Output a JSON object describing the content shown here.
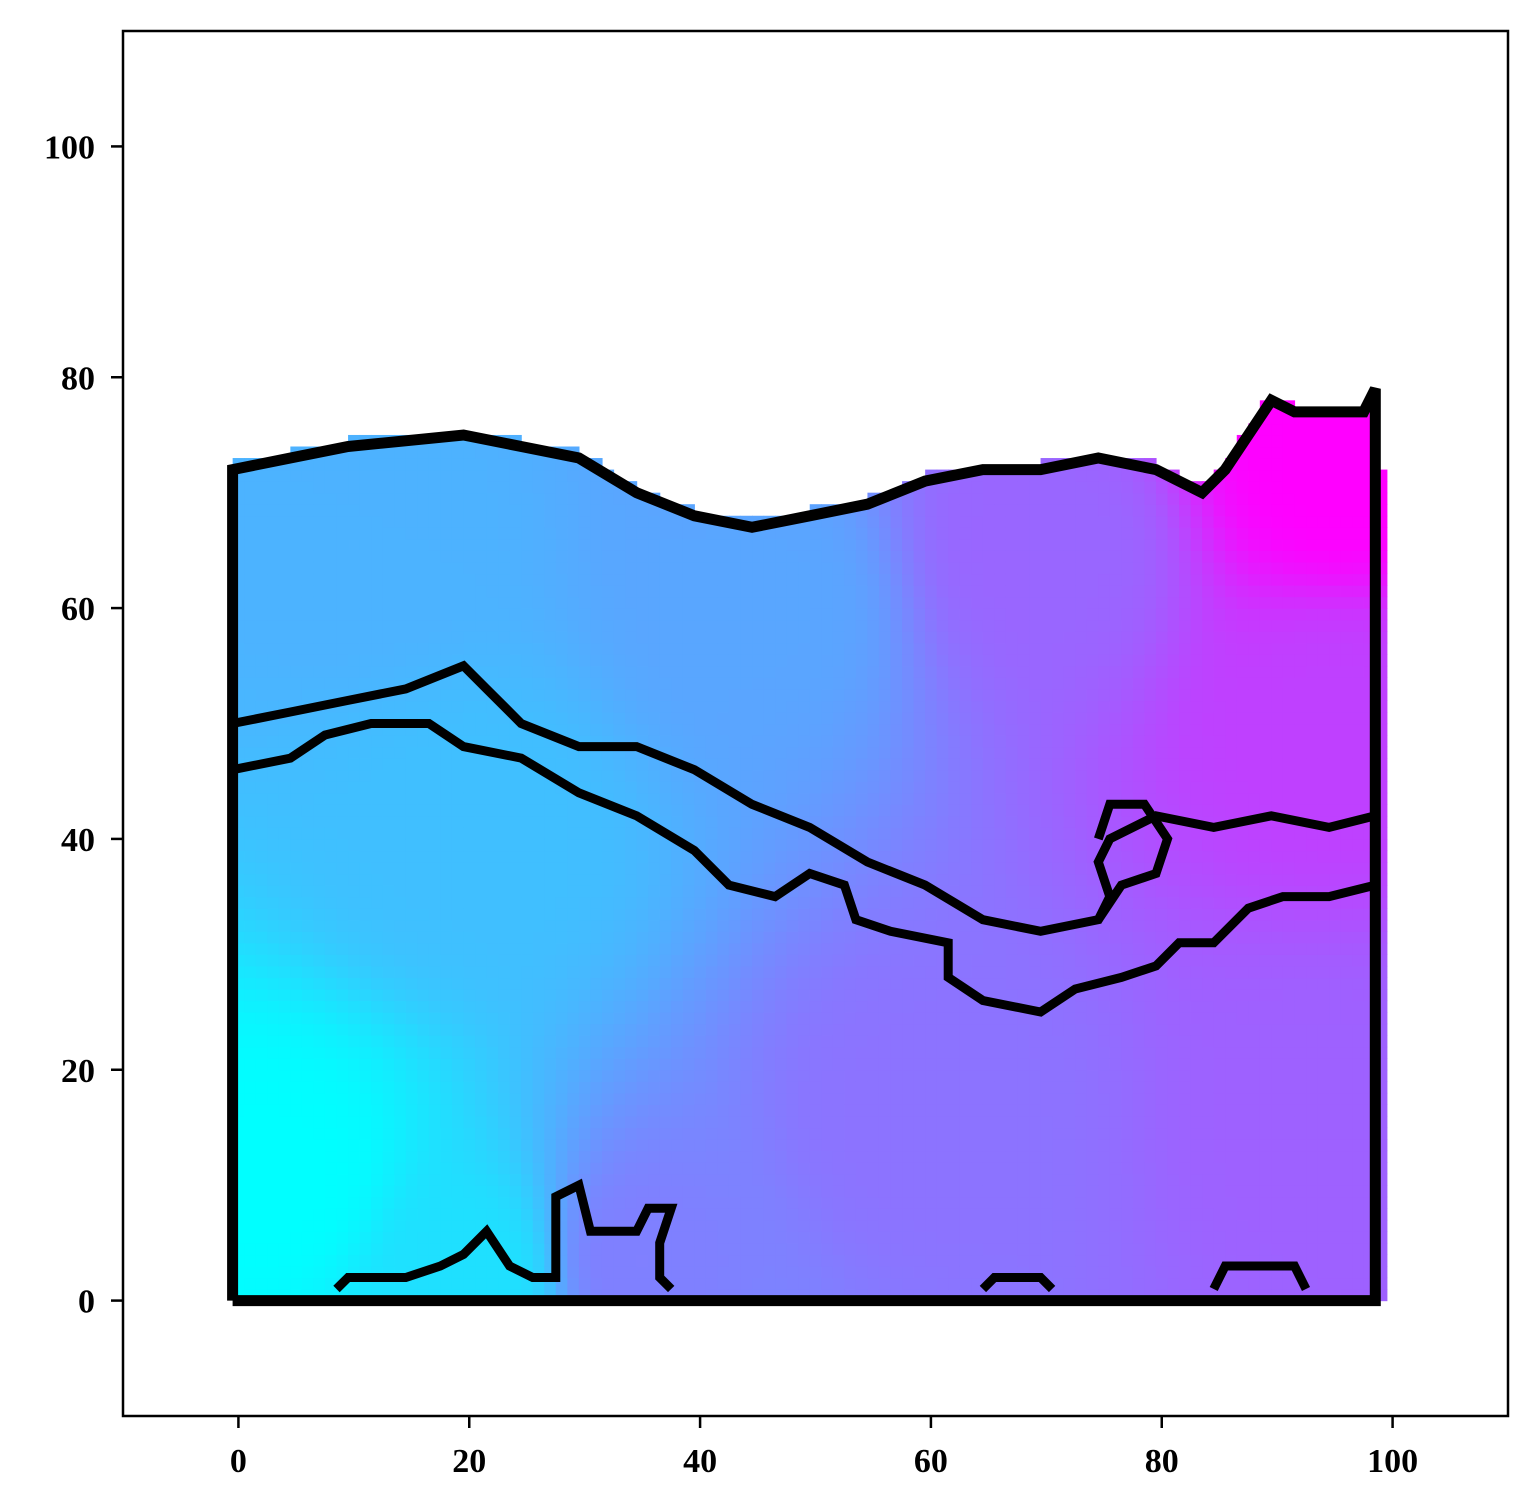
{
  "chart_data": {
    "type": "heatmap",
    "title": "",
    "xlabel": "",
    "ylabel": "",
    "xlim": [
      -10,
      110
    ],
    "ylim": [
      -10,
      110
    ],
    "xticks": [
      0,
      20,
      40,
      60,
      80,
      100
    ],
    "yticks": [
      0,
      20,
      40,
      60,
      80,
      100
    ],
    "grid": false,
    "colormap": "cool",
    "colormap_colors": [
      "#00ffff",
      "#ff00ff"
    ],
    "outline_color": "#000000",
    "field_anchors": [
      {
        "x": 3,
        "y": 10,
        "v": 0.0
      },
      {
        "x": 20,
        "y": 2,
        "v": 0.12
      },
      {
        "x": 35,
        "y": 3,
        "v": 0.5
      },
      {
        "x": 20,
        "y": 40,
        "v": 0.25
      },
      {
        "x": 10,
        "y": 65,
        "v": 0.3
      },
      {
        "x": 45,
        "y": 60,
        "v": 0.35
      },
      {
        "x": 60,
        "y": 15,
        "v": 0.55
      },
      {
        "x": 95,
        "y": 15,
        "v": 0.62
      },
      {
        "x": 70,
        "y": 65,
        "v": 0.6
      },
      {
        "x": 95,
        "y": 50,
        "v": 0.75
      },
      {
        "x": 95,
        "y": 72,
        "v": 1.0
      }
    ],
    "outline_paths": [
      [
        [
          0,
          0
        ],
        [
          0,
          72
        ],
        [
          5,
          73
        ],
        [
          10,
          74
        ],
        [
          20,
          75
        ],
        [
          25,
          74
        ],
        [
          30,
          73
        ],
        [
          35,
          70
        ],
        [
          40,
          68
        ],
        [
          45,
          67
        ],
        [
          50,
          68
        ],
        [
          55,
          69
        ],
        [
          60,
          71
        ],
        [
          65,
          72
        ],
        [
          70,
          72
        ],
        [
          75,
          73
        ],
        [
          80,
          72
        ],
        [
          84,
          70
        ],
        [
          86,
          72
        ],
        [
          88,
          75
        ],
        [
          90,
          78
        ],
        [
          92,
          77
        ],
        [
          98,
          77
        ],
        [
          99,
          79
        ],
        [
          99,
          0
        ],
        [
          0,
          0
        ]
      ],
      [
        [
          0,
          50
        ],
        [
          5,
          51
        ],
        [
          10,
          52
        ],
        [
          15,
          53
        ],
        [
          20,
          55
        ],
        [
          22,
          53
        ],
        [
          25,
          50
        ],
        [
          30,
          48
        ],
        [
          35,
          48
        ],
        [
          40,
          46
        ],
        [
          45,
          43
        ],
        [
          50,
          41
        ],
        [
          55,
          38
        ],
        [
          60,
          36
        ],
        [
          65,
          33
        ],
        [
          70,
          32
        ],
        [
          75,
          33
        ],
        [
          76,
          35
        ],
        [
          75,
          38
        ],
        [
          76,
          40
        ],
        [
          80,
          42
        ],
        [
          85,
          41
        ],
        [
          90,
          42
        ],
        [
          95,
          41
        ],
        [
          99,
          42
        ]
      ],
      [
        [
          75,
          33
        ],
        [
          77,
          36
        ],
        [
          80,
          37
        ],
        [
          81,
          40
        ],
        [
          79,
          43
        ],
        [
          76,
          43
        ],
        [
          75,
          40
        ]
      ],
      [
        [
          0,
          46
        ],
        [
          5,
          47
        ],
        [
          8,
          49
        ],
        [
          12,
          50
        ],
        [
          17,
          50
        ],
        [
          20,
          48
        ],
        [
          25,
          47
        ],
        [
          30,
          44
        ],
        [
          35,
          42
        ],
        [
          40,
          39
        ],
        [
          43,
          36
        ],
        [
          47,
          35
        ],
        [
          50,
          37
        ],
        [
          53,
          36
        ],
        [
          54,
          33
        ],
        [
          57,
          32
        ],
        [
          62,
          31
        ],
        [
          62,
          28
        ],
        [
          65,
          26
        ],
        [
          70,
          25
        ],
        [
          73,
          27
        ],
        [
          77,
          28
        ],
        [
          80,
          29
        ],
        [
          82,
          31
        ],
        [
          85,
          31
        ],
        [
          88,
          34
        ],
        [
          91,
          35
        ],
        [
          93,
          35
        ],
        [
          95,
          35
        ],
        [
          99,
          36
        ]
      ],
      [
        [
          9,
          1
        ],
        [
          10,
          2
        ],
        [
          15,
          2
        ],
        [
          18,
          3
        ],
        [
          20,
          4
        ],
        [
          22,
          6
        ],
        [
          24,
          3
        ],
        [
          26,
          2
        ],
        [
          28,
          2
        ],
        [
          28,
          9
        ],
        [
          30,
          10
        ],
        [
          31,
          6
        ],
        [
          35,
          6
        ],
        [
          36,
          8
        ],
        [
          38,
          8
        ],
        [
          37,
          5
        ],
        [
          37,
          2
        ],
        [
          38,
          1
        ]
      ],
      [
        [
          65,
          1
        ],
        [
          66,
          2
        ],
        [
          70,
          2
        ],
        [
          71,
          1
        ]
      ],
      [
        [
          85,
          1
        ],
        [
          86,
          3
        ],
        [
          92,
          3
        ],
        [
          93,
          1
        ]
      ]
    ]
  }
}
